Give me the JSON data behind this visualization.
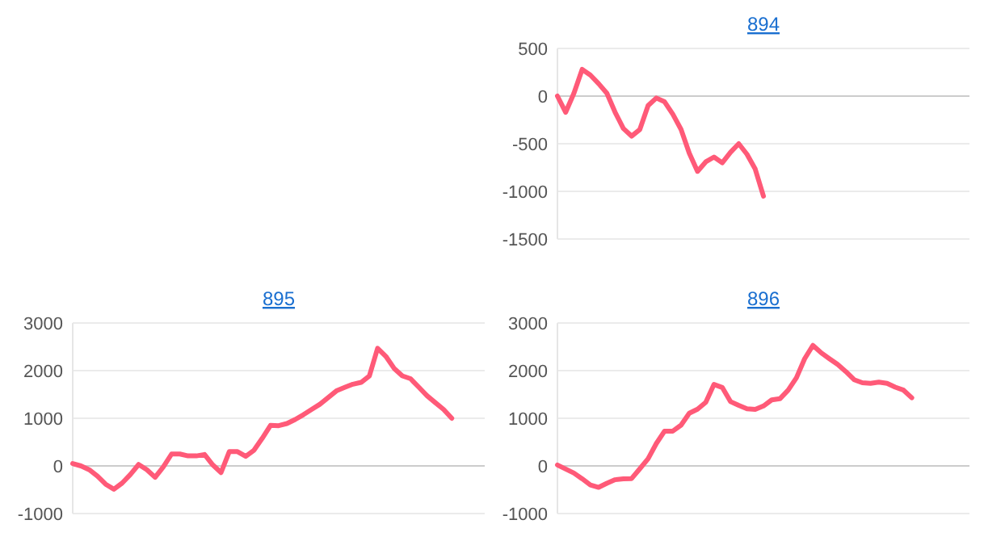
{
  "chart_data": [
    {
      "type": "line",
      "title": "894",
      "tick_labels": "y",
      "grid": "y",
      "ylim": [
        -1500,
        500
      ],
      "yticks": [
        -1500,
        -1000,
        -500,
        0,
        500
      ],
      "categories": [
        null,
        null,
        null,
        null,
        null,
        null,
        null,
        null,
        null,
        null,
        null,
        null,
        null,
        null,
        null,
        null,
        null,
        null,
        null,
        null,
        null,
        null,
        null,
        null,
        null,
        null,
        null,
        null,
        null,
        null,
        null,
        null,
        null,
        null,
        null,
        null,
        null,
        null,
        null,
        null,
        null,
        null,
        null,
        null,
        null,
        null,
        null,
        null,
        null,
        null,
        null
      ],
      "series": [
        {
          "color": "#ff5a78",
          "values": [
            0,
            -170,
            30,
            280,
            220,
            130,
            30,
            -170,
            -340,
            -420,
            -350,
            -100,
            -20,
            -60,
            -190,
            -350,
            -600,
            -790,
            -690,
            -640,
            -700,
            -590,
            -500,
            -610,
            -765,
            -1050,
            null,
            null,
            null,
            null,
            null,
            null,
            null,
            null,
            null,
            null,
            null,
            null,
            null,
            null,
            null,
            null,
            null,
            null,
            null,
            null,
            null,
            null,
            null,
            null,
            null
          ]
        }
      ]
    },
    {
      "type": "line",
      "title": "895",
      "tick_labels": "y",
      "grid": "y",
      "ylim": [
        -1000,
        3000
      ],
      "yticks": [
        -1000,
        0,
        1000,
        2000,
        3000
      ],
      "categories": [
        null,
        null,
        null,
        null,
        null,
        null,
        null,
        null,
        null,
        null,
        null,
        null,
        null,
        null,
        null,
        null,
        null,
        null,
        null,
        null,
        null,
        null,
        null,
        null,
        null,
        null,
        null,
        null,
        null,
        null,
        null,
        null,
        null,
        null,
        null,
        null,
        null,
        null,
        null,
        null,
        null,
        null,
        null,
        null,
        null,
        null,
        null,
        null,
        null,
        null,
        null
      ],
      "series": [
        {
          "color": "#ff5a78",
          "values": [
            50,
            0,
            -80,
            -215,
            -385,
            -490,
            -360,
            -180,
            30,
            -80,
            -240,
            -20,
            250,
            250,
            210,
            210,
            240,
            20,
            -140,
            300,
            300,
            200,
            330,
            580,
            850,
            845,
            890,
            975,
            1075,
            1185,
            1295,
            1433,
            1575,
            1647,
            1715,
            1754,
            1888,
            2470,
            2300,
            2048,
            1890,
            1830,
            1652,
            1473,
            1328,
            1186,
            1000,
            null,
            null,
            null,
            null
          ]
        }
      ]
    },
    {
      "type": "line",
      "title": "896",
      "tick_labels": "y",
      "grid": "y",
      "ylim": [
        -1000,
        3000
      ],
      "yticks": [
        -1000,
        0,
        1000,
        2000,
        3000
      ],
      "categories": [
        null,
        null,
        null,
        null,
        null,
        null,
        null,
        null,
        null,
        null,
        null,
        null,
        null,
        null,
        null,
        null,
        null,
        null,
        null,
        null,
        null,
        null,
        null,
        null,
        null,
        null,
        null,
        null,
        null,
        null,
        null,
        null,
        null,
        null,
        null,
        null,
        null,
        null,
        null,
        null,
        null,
        null,
        null,
        null,
        null,
        null,
        null,
        null,
        null,
        null,
        null
      ],
      "series": [
        {
          "color": "#ff5a78",
          "values": [
            20,
            -65,
            -150,
            -270,
            -400,
            -450,
            -365,
            -290,
            -270,
            -265,
            -60,
            150,
            470,
            730,
            730,
            855,
            1105,
            1190,
            1334,
            1710,
            1647,
            1350,
            1270,
            1200,
            1185,
            1257,
            1385,
            1410,
            1590,
            1850,
            2250,
            2530,
            2375,
            2250,
            2130,
            1980,
            1810,
            1745,
            1734,
            1757,
            1733,
            1652,
            1590,
            1430,
            null,
            null,
            null,
            null,
            null,
            null,
            null
          ]
        }
      ]
    }
  ]
}
